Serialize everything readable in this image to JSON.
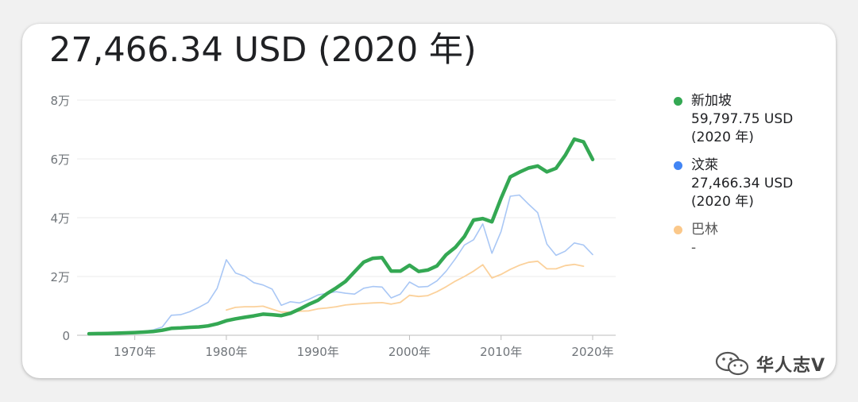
{
  "header": {
    "value_text": "27,466.34 USD (2020 年)"
  },
  "chart_data": {
    "type": "line",
    "x": [
      1965,
      1966,
      1967,
      1968,
      1969,
      1970,
      1971,
      1972,
      1973,
      1974,
      1975,
      1976,
      1977,
      1978,
      1979,
      1980,
      1981,
      1982,
      1983,
      1984,
      1985,
      1986,
      1987,
      1988,
      1989,
      1990,
      1991,
      1992,
      1993,
      1994,
      1995,
      1996,
      1997,
      1998,
      1999,
      2000,
      2001,
      2002,
      2003,
      2004,
      2005,
      2006,
      2007,
      2008,
      2009,
      2010,
      2011,
      2012,
      2013,
      2014,
      2015,
      2016,
      2017,
      2018,
      2019,
      2020
    ],
    "x_ticks": [
      "1970年",
      "1980年",
      "1990年",
      "2000年",
      "2010年",
      "2020年"
    ],
    "x_tick_values": [
      1970,
      1980,
      1990,
      2000,
      2010,
      2020
    ],
    "y_ticks": [
      "0",
      "2万",
      "4万",
      "6万",
      "8万"
    ],
    "y_tick_values": [
      0,
      20000,
      40000,
      60000,
      80000
    ],
    "ylim": [
      0,
      80000
    ],
    "xlim": [
      1965,
      2020
    ],
    "grid": true,
    "legend_position": "right",
    "series": [
      {
        "name": "新加坡",
        "color": "#34a853",
        "values": [
          520,
          570,
          630,
          710,
          820,
          930,
          1070,
          1270,
          1700,
          2350,
          2500,
          2700,
          2850,
          3200,
          3900,
          4950,
          5600,
          6100,
          6600,
          7200,
          7000,
          6700,
          7500,
          8900,
          10500,
          11900,
          14200,
          16100,
          18300,
          21600,
          24900,
          26200,
          26400,
          21800,
          21800,
          23800,
          21700,
          22200,
          23600,
          27400,
          29900,
          33600,
          39200,
          39700,
          38600,
          46600,
          53900,
          55500,
          56900,
          57600,
          55600,
          56800,
          61200,
          66700,
          65800,
          59798
        ]
      },
      {
        "name": "汶萊",
        "color": "#a9c7f5",
        "values": [
          800,
          850,
          900,
          950,
          1000,
          1100,
          1300,
          1800,
          2800,
          6800,
          7000,
          8000,
          9500,
          11200,
          16000,
          25700,
          21200,
          20100,
          17900,
          17100,
          15700,
          10200,
          11400,
          11000,
          12200,
          13700,
          14300,
          14800,
          14300,
          14000,
          16000,
          16600,
          16400,
          12700,
          14000,
          18100,
          16400,
          16600,
          18500,
          21800,
          26000,
          30700,
          32500,
          37900,
          27900,
          35300,
          47300,
          47700,
          44600,
          41700,
          31000,
          27200,
          28600,
          31400,
          30700,
          27466
        ]
      },
      {
        "name": "巴林",
        "color": "#fbd19b",
        "values": [
          null,
          null,
          null,
          null,
          null,
          null,
          null,
          null,
          null,
          null,
          null,
          null,
          null,
          null,
          null,
          8600,
          9500,
          9700,
          9700,
          9900,
          8900,
          7900,
          7900,
          8200,
          8300,
          9000,
          9300,
          9700,
          10300,
          10600,
          10800,
          11000,
          11100,
          10600,
          11200,
          13600,
          13200,
          13500,
          14800,
          16500,
          18400,
          20000,
          21800,
          24000,
          19500,
          20700,
          22400,
          23800,
          24800,
          25200,
          22600,
          22600,
          23700,
          24100,
          23500,
          null
        ]
      }
    ]
  },
  "legend": [
    {
      "name": "新加坡",
      "value": "59,797.75 USD",
      "year": "(2020 年)",
      "color": "#34a853"
    },
    {
      "name": "汶萊",
      "value": "27,466.34 USD",
      "year": "(2020 年)",
      "color": "#4285f4"
    },
    {
      "name": "巴林",
      "value": "-",
      "year": "",
      "color": "#fbc88a"
    }
  ],
  "watermark": {
    "text": "华人志V",
    "icon": "wechat-icon"
  }
}
